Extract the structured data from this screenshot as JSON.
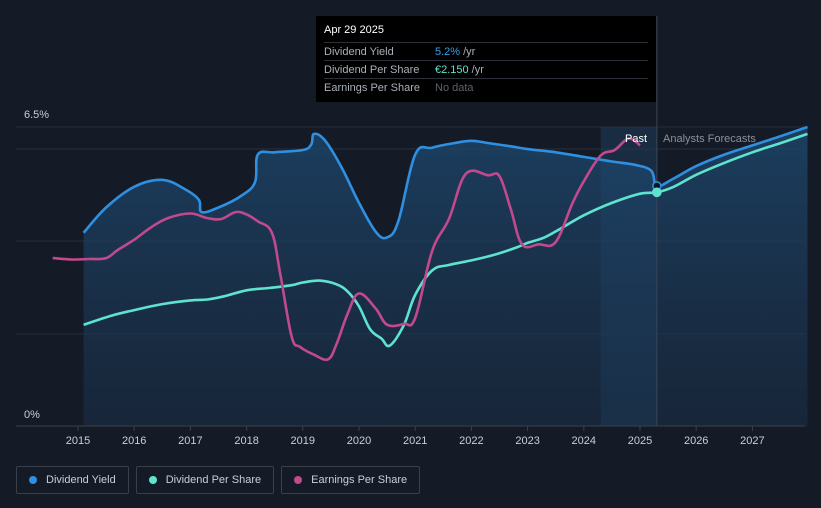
{
  "chart_data": {
    "type": "line",
    "ylim": [
      0,
      6.5
    ],
    "y_tick_labels": [
      "6.5%",
      "0%"
    ],
    "x_tick_labels": [
      "2015",
      "2016",
      "2017",
      "2018",
      "2019",
      "2020",
      "2021",
      "2022",
      "2023",
      "2024",
      "2025",
      "2026",
      "2027"
    ],
    "region_labels": {
      "past": "Past",
      "forecast": "Analysts Forecasts"
    },
    "past_forecast_split": 2025.3,
    "series": [
      {
        "name": "Dividend Yield",
        "color": "#2f8fe0",
        "x": [
          2015.1,
          2015.5,
          2016.0,
          2016.5,
          2016.9,
          2017.15,
          2017.2,
          2017.5,
          2017.9,
          2018.15,
          2018.2,
          2018.5,
          2019.0,
          2019.15,
          2019.2,
          2019.4,
          2019.7,
          2020.0,
          2020.3,
          2020.5,
          2020.7,
          2021.0,
          2021.3,
          2021.7,
          2022.0,
          2022.3,
          2022.7,
          2023.0,
          2023.5,
          2024.0,
          2024.5,
          2024.9,
          2025.2,
          2025.3,
          2025.6,
          2026.0,
          2026.5,
          2027.0,
          2027.5,
          2027.98
        ],
        "y": [
          4.2,
          4.75,
          5.2,
          5.35,
          5.15,
          4.92,
          4.65,
          4.75,
          5.0,
          5.3,
          5.9,
          5.95,
          6.0,
          6.12,
          6.35,
          6.2,
          5.6,
          4.85,
          4.22,
          4.1,
          4.45,
          5.9,
          6.05,
          6.15,
          6.2,
          6.15,
          6.08,
          6.02,
          5.95,
          5.85,
          5.75,
          5.68,
          5.55,
          5.22,
          5.38,
          5.65,
          5.9,
          6.1,
          6.3,
          6.5
        ]
      },
      {
        "name": "Dividend Per Share",
        "color": "#5fe3cf",
        "x": [
          2015.1,
          2015.6,
          2016.0,
          2016.5,
          2017.0,
          2017.3,
          2017.6,
          2018.0,
          2018.4,
          2018.8,
          2019.0,
          2019.3,
          2019.6,
          2019.8,
          2020.0,
          2020.2,
          2020.4,
          2020.55,
          2020.8,
          2021.0,
          2021.3,
          2021.6,
          2022.0,
          2022.4,
          2022.8,
          2023.0,
          2023.3,
          2023.6,
          2024.0,
          2024.5,
          2025.0,
          2025.3,
          2025.6,
          2026.0,
          2026.5,
          2027.0,
          2027.5,
          2027.98
        ],
        "y": [
          2.2,
          2.4,
          2.52,
          2.65,
          2.73,
          2.75,
          2.82,
          2.95,
          3.0,
          3.06,
          3.12,
          3.16,
          3.08,
          2.92,
          2.6,
          2.1,
          1.9,
          1.75,
          2.2,
          2.85,
          3.38,
          3.5,
          3.6,
          3.72,
          3.88,
          3.98,
          4.1,
          4.3,
          4.58,
          4.85,
          5.05,
          5.08,
          5.2,
          5.46,
          5.72,
          5.95,
          6.15,
          6.35
        ]
      },
      {
        "name": "Earnings Per Share",
        "color": "#c2498e",
        "x": [
          2014.55,
          2014.9,
          2015.2,
          2015.5,
          2015.7,
          2016.0,
          2016.3,
          2016.6,
          2017.0,
          2017.3,
          2017.55,
          2017.8,
          2018.0,
          2018.2,
          2018.45,
          2018.6,
          2018.8,
          2018.95,
          2019.2,
          2019.45,
          2019.6,
          2019.8,
          2020.0,
          2020.3,
          2020.5,
          2020.8,
          2021.0,
          2021.3,
          2021.6,
          2021.9,
          2022.3,
          2022.5,
          2022.7,
          2022.9,
          2023.2,
          2023.5,
          2023.8,
          2024.0,
          2024.3,
          2024.55,
          2024.8,
          2025.0
        ],
        "y": [
          3.65,
          3.62,
          3.63,
          3.65,
          3.82,
          4.05,
          4.32,
          4.52,
          4.62,
          4.52,
          4.5,
          4.65,
          4.6,
          4.45,
          4.2,
          3.3,
          1.95,
          1.72,
          1.55,
          1.45,
          1.78,
          2.45,
          2.88,
          2.55,
          2.2,
          2.22,
          2.35,
          3.8,
          4.5,
          5.48,
          5.45,
          5.43,
          4.72,
          3.95,
          3.95,
          4.0,
          4.85,
          5.32,
          5.88,
          6.0,
          6.25,
          6.1
        ]
      }
    ]
  },
  "tooltip": {
    "date": "Apr 29 2025",
    "rows": [
      {
        "label": "Dividend Yield",
        "value": "5.2%",
        "unit": "/yr"
      },
      {
        "label": "Dividend Per Share",
        "value": "€2.150",
        "unit": "/yr"
      },
      {
        "label": "Earnings Per Share",
        "value": "No data",
        "unit": ""
      }
    ]
  },
  "legend": [
    {
      "label": "Dividend Yield",
      "color": "#2f8fe0"
    },
    {
      "label": "Dividend Per Share",
      "color": "#5fe3cf"
    },
    {
      "label": "Earnings Per Share",
      "color": "#c2498e"
    }
  ]
}
